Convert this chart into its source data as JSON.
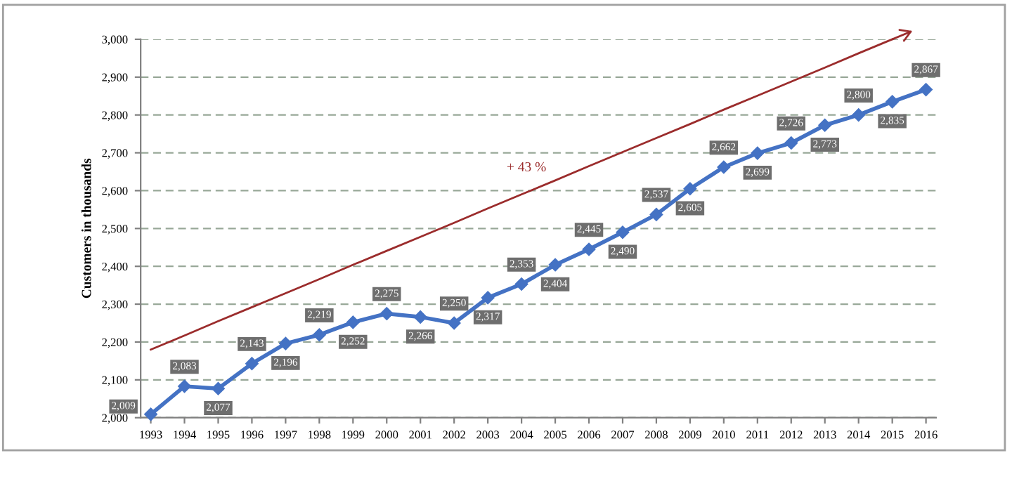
{
  "chart_data": {
    "type": "line",
    "ylabel": "Customers in thousands",
    "categories": [
      "1993",
      "1994",
      "1995",
      "1996",
      "1997",
      "1998",
      "1999",
      "2000",
      "2001",
      "2002",
      "2003",
      "2004",
      "2005",
      "2006",
      "2007",
      "2008",
      "2009",
      "2010",
      "2011",
      "2012",
      "2013",
      "2014",
      "2015",
      "2016"
    ],
    "series": [
      {
        "color": "#4472c4",
        "values": [
          2009,
          2083,
          2077,
          2143,
          2196,
          2219,
          2252,
          2275,
          2266,
          2250,
          2317,
          2353,
          2404,
          2445,
          2490,
          2537,
          2605,
          2662,
          2699,
          2726,
          2773,
          2800,
          2835,
          2867
        ],
        "value_labels": [
          "2,009",
          "2,083",
          "2,077",
          "2,143",
          "2,196",
          "2,219",
          "2,252",
          "2,275",
          "2,266",
          "2,250",
          "2,317",
          "2,353",
          "2,404",
          "2,445",
          "2,490",
          "2,537",
          "2,605",
          "2,662",
          "2,699",
          "2,726",
          "2,773",
          "2,800",
          "2,835",
          "2,867"
        ]
      },
      {
        "type": "line",
        "color": "#9b2c2c",
        "marker": "none",
        "values": [
          2180,
          2217,
          2255,
          2292,
          2329,
          2366,
          2404,
          2441,
          2478,
          2515,
          2553,
          2590,
          2627,
          2665,
          2702,
          2739,
          2776,
          2814,
          2851,
          2888,
          2925,
          2963,
          3000,
          null
        ]
      }
    ],
    "marker": "diamond",
    "line_style": "solid",
    "ylim": [
      2000,
      3000
    ],
    "yticks": [
      {
        "value": 2000,
        "label": "2,000"
      },
      {
        "value": 2100,
        "label": "2,100"
      },
      {
        "value": 2200,
        "label": "2,200"
      },
      {
        "value": 2300,
        "label": "2,300"
      },
      {
        "value": 2400,
        "label": "2,400"
      },
      {
        "value": 2500,
        "label": "2,500"
      },
      {
        "value": 2600,
        "label": "2,600"
      },
      {
        "value": 2700,
        "label": "2,700"
      },
      {
        "value": 2800,
        "label": "2,800"
      },
      {
        "value": 2900,
        "label": "2,900"
      },
      {
        "value": 3000,
        "label": "3,000"
      }
    ],
    "grid": "y",
    "annotations": [
      "+ 43 %"
    ]
  }
}
